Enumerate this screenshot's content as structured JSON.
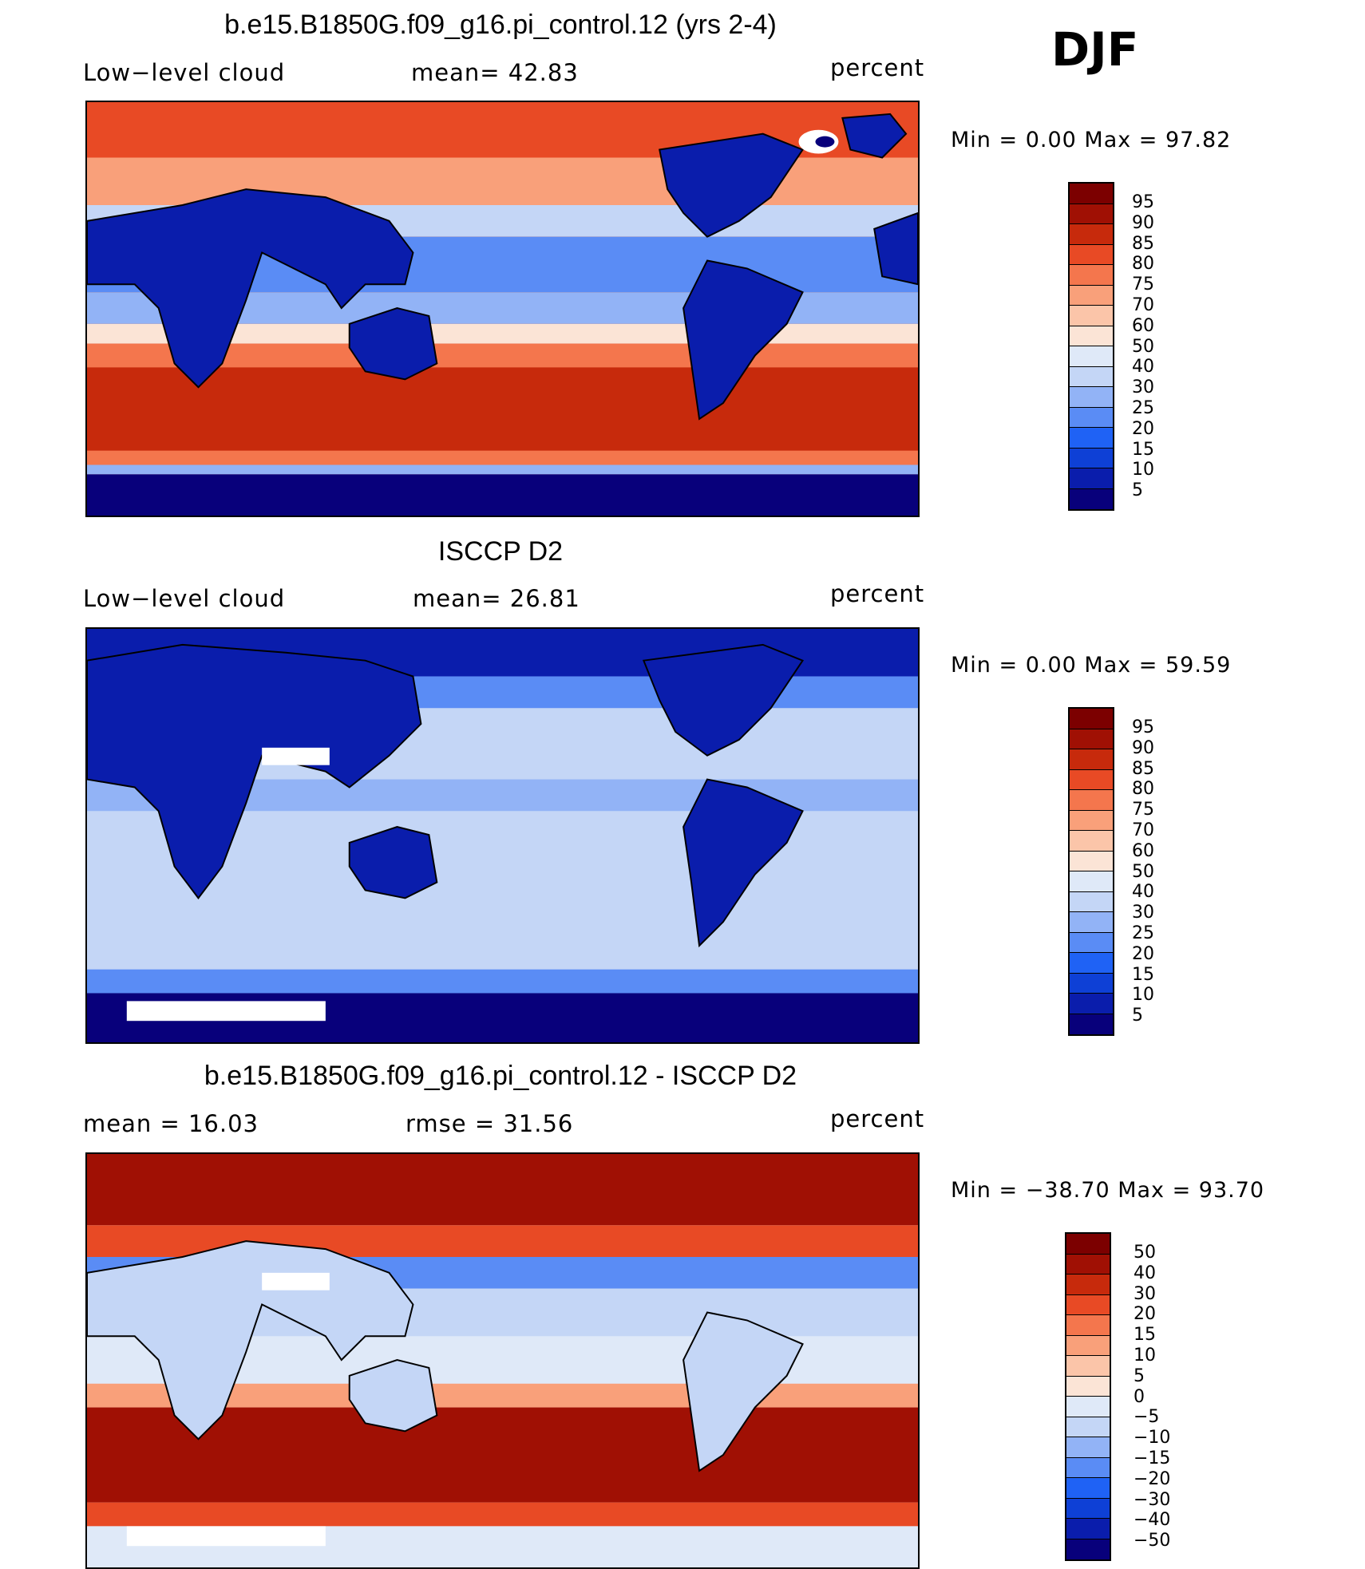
{
  "season": "DJF",
  "panels": [
    {
      "title": "b.e15.B1850G.f09_g16.pi_control.12 (yrs 2-4)",
      "left_label": "Low−level cloud",
      "mid_label": "mean=   42.83",
      "right_label": "percent",
      "minmax": "Min =    0.00 Max =   97.82",
      "field": "model_low_cloud",
      "colorbar_ticks": [
        "95",
        "90",
        "85",
        "80",
        "75",
        "70",
        "60",
        "50",
        "40",
        "30",
        "25",
        "20",
        "15",
        "10",
        "5"
      ]
    },
    {
      "title": "ISCCP D2",
      "left_label": "Low−level cloud",
      "mid_label": "mean=   26.81",
      "right_label": "percent",
      "minmax": "Min =    0.00 Max =   59.59",
      "field": "obs_low_cloud",
      "colorbar_ticks": [
        "95",
        "90",
        "85",
        "80",
        "75",
        "70",
        "60",
        "50",
        "40",
        "30",
        "25",
        "20",
        "15",
        "10",
        "5"
      ]
    },
    {
      "title": "b.e15.B1850G.f09_g16.pi_control.12 - ISCCP D2",
      "left_label": "mean =   16.03",
      "mid_label": "rmse =   31.56",
      "right_label": "percent",
      "minmax": "Min = −38.70 Max =   93.70",
      "field": "difference",
      "colorbar_ticks": [
        "50",
        "40",
        "30",
        "20",
        "15",
        "10",
        "5",
        "0",
        "−5",
        "−10",
        "−15",
        "−20",
        "−30",
        "−40",
        "−50"
      ]
    }
  ],
  "colors": {
    "seq": [
      "#08007b",
      "#0a1dac",
      "#0e40d6",
      "#1f62f5",
      "#5a8cf5",
      "#92b3f6",
      "#c4d6f6",
      "#dfe9f8",
      "#fbe4d6",
      "#fbc5a9",
      "#f9a07a",
      "#f4764d",
      "#e84a25",
      "#c72a0c",
      "#a01004",
      "#7c0000"
    ]
  }
}
